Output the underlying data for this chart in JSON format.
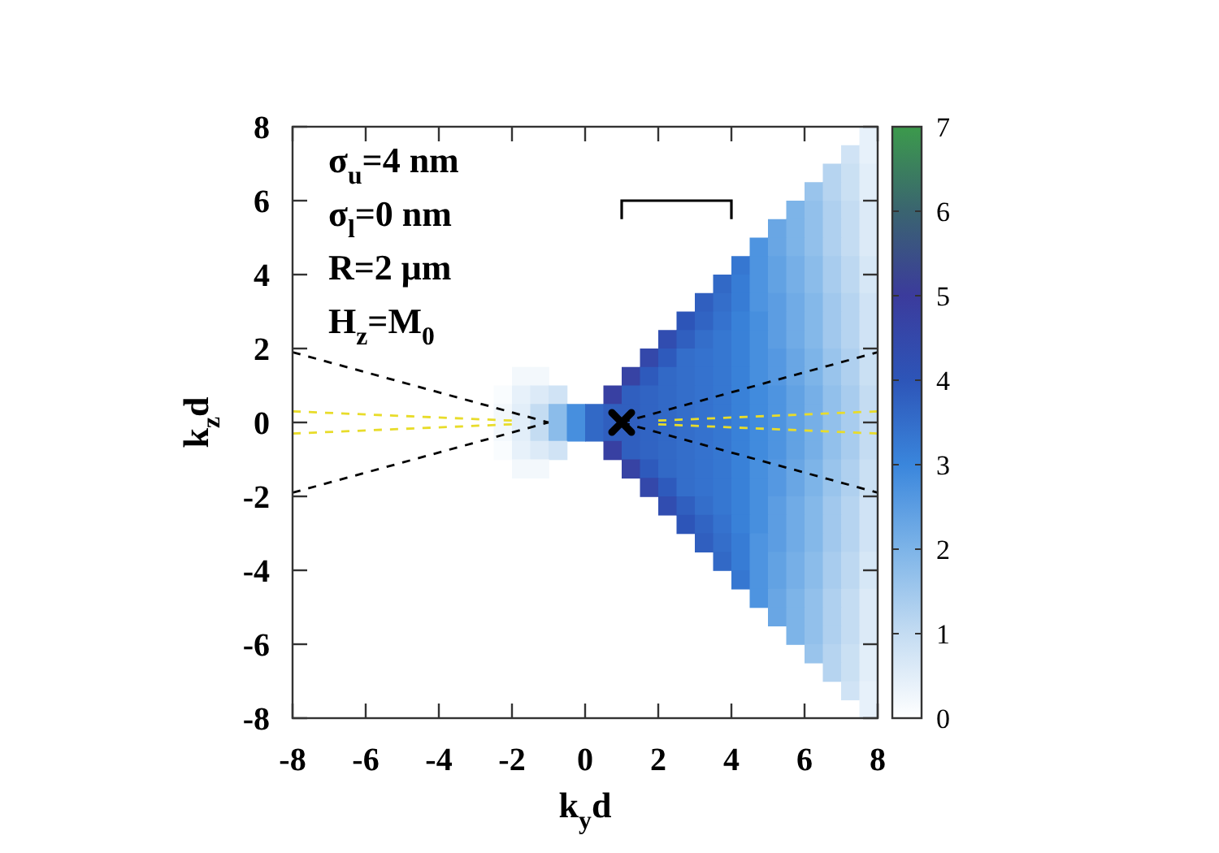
{
  "chart_data": {
    "type": "heatmap",
    "xlabel": "k$_{y}$d",
    "ylabel": "k$_{z}$d",
    "xlim": [
      -8,
      8
    ],
    "ylim": [
      -8,
      8
    ],
    "xticks": [
      -8,
      -6,
      -4,
      -2,
      0,
      2,
      4,
      6,
      8
    ],
    "yticks": [
      -8,
      -6,
      -4,
      -2,
      0,
      2,
      4,
      6,
      8
    ],
    "clim": [
      0,
      7
    ],
    "cticks": [
      0,
      1,
      2,
      3,
      4,
      5,
      6,
      7
    ],
    "annotations": [
      "σ$_{u}$=4 nm",
      "σ$_{l}$=0 nm",
      "R=2 μm",
      "H$_{z}$=M$_{0}$"
    ],
    "line_style": "dashed",
    "series": [
      {
        "type": "line",
        "color": "#000000",
        "x": [
          -8,
          -1
        ],
        "values": [
          1.9,
          0
        ]
      },
      {
        "type": "line",
        "color": "#000000",
        "x": [
          -8,
          -1
        ],
        "values": [
          -1.9,
          0
        ]
      },
      {
        "type": "line",
        "color": "#000000",
        "x": [
          1,
          8
        ],
        "values": [
          0,
          1.9
        ]
      },
      {
        "type": "line",
        "color": "#000000",
        "x": [
          1,
          8
        ],
        "values": [
          0,
          -1.9
        ]
      },
      {
        "type": "line",
        "color": "#e8dc2a",
        "x": [
          -8,
          -2
        ],
        "values": [
          0.3,
          0.05
        ]
      },
      {
        "type": "line",
        "color": "#e8dc2a",
        "x": [
          -8,
          -2
        ],
        "values": [
          -0.3,
          -0.05
        ]
      },
      {
        "type": "line",
        "color": "#e8dc2a",
        "x": [
          2,
          8
        ],
        "values": [
          0.05,
          0.3
        ]
      },
      {
        "type": "line",
        "color": "#e8dc2a",
        "x": [
          2,
          8
        ],
        "values": [
          -0.05,
          -0.3
        ]
      },
      {
        "type": "scatter",
        "color": "#000000",
        "marker": "cross",
        "x": [
          1
        ],
        "values": [
          0
        ]
      }
    ],
    "cells": [
      [
        null,
        null,
        null,
        null,
        null,
        null,
        null,
        null,
        null,
        null,
        null,
        null,
        null,
        null,
        null,
        null,
        null,
        null,
        null,
        null,
        null,
        null,
        null,
        null,
        null,
        null,
        null,
        null,
        null,
        null,
        null,
        0.4
      ],
      [
        null,
        null,
        null,
        null,
        null,
        null,
        null,
        null,
        null,
        null,
        null,
        null,
        null,
        null,
        null,
        null,
        null,
        null,
        null,
        null,
        null,
        null,
        null,
        null,
        null,
        null,
        null,
        null,
        null,
        null,
        0.8,
        0.4
      ],
      [
        null,
        null,
        null,
        null,
        null,
        null,
        null,
        null,
        null,
        null,
        null,
        null,
        null,
        null,
        null,
        null,
        null,
        null,
        null,
        null,
        null,
        null,
        null,
        null,
        null,
        null,
        null,
        null,
        null,
        1.2,
        0.9,
        0.5
      ],
      [
        null,
        null,
        null,
        null,
        null,
        null,
        null,
        null,
        null,
        null,
        null,
        null,
        null,
        null,
        null,
        null,
        null,
        null,
        null,
        null,
        null,
        null,
        null,
        null,
        null,
        null,
        null,
        null,
        1.6,
        1.2,
        0.9,
        0.5
      ],
      [
        null,
        null,
        null,
        null,
        null,
        null,
        null,
        null,
        null,
        null,
        null,
        null,
        null,
        null,
        null,
        null,
        null,
        null,
        null,
        null,
        null,
        null,
        null,
        null,
        null,
        null,
        null,
        2.0,
        1.7,
        1.3,
        1.0,
        0.6
      ],
      [
        null,
        null,
        null,
        null,
        null,
        null,
        null,
        null,
        null,
        null,
        null,
        null,
        null,
        null,
        null,
        null,
        null,
        null,
        null,
        null,
        null,
        null,
        null,
        null,
        null,
        null,
        2.3,
        2.0,
        1.7,
        1.3,
        1.0,
        0.6
      ],
      [
        null,
        null,
        null,
        null,
        null,
        null,
        null,
        null,
        null,
        null,
        null,
        null,
        null,
        null,
        null,
        null,
        null,
        null,
        null,
        null,
        null,
        null,
        null,
        null,
        null,
        2.7,
        2.3,
        2.0,
        1.7,
        1.3,
        1.0,
        0.6
      ],
      [
        null,
        null,
        null,
        null,
        null,
        null,
        null,
        null,
        null,
        null,
        null,
        null,
        null,
        null,
        null,
        null,
        null,
        null,
        null,
        null,
        null,
        null,
        null,
        null,
        3.3,
        2.7,
        2.4,
        2.1,
        1.8,
        1.4,
        1.1,
        0.7
      ],
      [
        null,
        null,
        null,
        null,
        null,
        null,
        null,
        null,
        null,
        null,
        null,
        null,
        null,
        null,
        null,
        null,
        null,
        null,
        null,
        null,
        null,
        null,
        null,
        3.6,
        3.2,
        2.7,
        2.4,
        2.1,
        1.8,
        1.4,
        1.1,
        0.7
      ],
      [
        null,
        null,
        null,
        null,
        null,
        null,
        null,
        null,
        null,
        null,
        null,
        null,
        null,
        null,
        null,
        null,
        null,
        null,
        null,
        null,
        null,
        null,
        3.8,
        3.5,
        3.2,
        2.7,
        2.5,
        2.2,
        1.9,
        1.5,
        1.2,
        0.8
      ],
      [
        null,
        null,
        null,
        null,
        null,
        null,
        null,
        null,
        null,
        null,
        null,
        null,
        null,
        null,
        null,
        null,
        null,
        null,
        null,
        null,
        null,
        4.0,
        3.7,
        3.4,
        3.1,
        2.8,
        2.5,
        2.2,
        1.9,
        1.5,
        1.2,
        0.8
      ],
      [
        null,
        null,
        null,
        null,
        null,
        null,
        null,
        null,
        null,
        null,
        null,
        null,
        null,
        null,
        null,
        null,
        null,
        null,
        null,
        null,
        4.3,
        3.8,
        3.5,
        3.3,
        3.1,
        2.8,
        2.5,
        2.2,
        1.9,
        1.5,
        1.2,
        0.8
      ],
      [
        null,
        null,
        null,
        null,
        null,
        null,
        null,
        null,
        null,
        null,
        null,
        null,
        null,
        null,
        null,
        null,
        null,
        null,
        null,
        4.5,
        3.9,
        3.5,
        3.4,
        3.3,
        3.1,
        2.8,
        2.6,
        2.3,
        2.0,
        1.6,
        1.3,
        0.9
      ],
      [
        null,
        null,
        null,
        null,
        null,
        null,
        null,
        null,
        null,
        null,
        null,
        null,
        0.2,
        0.2,
        null,
        null,
        null,
        null,
        4.7,
        3.9,
        3.6,
        3.5,
        3.4,
        3.3,
        3.1,
        2.8,
        2.6,
        2.3,
        2.0,
        1.6,
        1.3,
        0.9
      ],
      [
        null,
        null,
        null,
        null,
        null,
        null,
        null,
        null,
        null,
        null,
        null,
        0.1,
        0.4,
        0.6,
        0.8,
        null,
        null,
        4.8,
        3.8,
        3.7,
        3.6,
        3.5,
        3.4,
        3.3,
        3.1,
        2.9,
        2.7,
        2.4,
        2.1,
        1.7,
        1.4,
        1.0
      ],
      [
        null,
        null,
        null,
        null,
        null,
        null,
        null,
        null,
        null,
        null,
        null,
        0.2,
        0.5,
        1.0,
        1.8,
        2.8,
        3.6,
        3.8,
        3.8,
        3.7,
        3.6,
        3.5,
        3.4,
        3.3,
        3.1,
        2.9,
        2.7,
        2.4,
        2.1,
        1.7,
        1.4,
        1.0
      ],
      [
        null,
        null,
        null,
        null,
        null,
        null,
        null,
        null,
        null,
        null,
        null,
        0.2,
        0.5,
        1.0,
        1.8,
        2.8,
        3.6,
        3.8,
        3.8,
        3.7,
        3.6,
        3.5,
        3.4,
        3.3,
        3.1,
        2.9,
        2.7,
        2.4,
        2.1,
        1.7,
        1.4,
        1.0
      ],
      [
        null,
        null,
        null,
        null,
        null,
        null,
        null,
        null,
        null,
        null,
        null,
        0.1,
        0.4,
        0.6,
        0.8,
        null,
        null,
        4.8,
        3.8,
        3.7,
        3.6,
        3.5,
        3.4,
        3.3,
        3.1,
        2.9,
        2.7,
        2.4,
        2.1,
        1.7,
        1.4,
        1.0
      ],
      [
        null,
        null,
        null,
        null,
        null,
        null,
        null,
        null,
        null,
        null,
        null,
        null,
        0.2,
        0.2,
        null,
        null,
        null,
        null,
        4.7,
        3.9,
        3.6,
        3.5,
        3.4,
        3.3,
        3.1,
        2.8,
        2.6,
        2.3,
        2.0,
        1.6,
        1.3,
        0.9
      ],
      [
        null,
        null,
        null,
        null,
        null,
        null,
        null,
        null,
        null,
        null,
        null,
        null,
        null,
        null,
        null,
        null,
        null,
        null,
        null,
        4.5,
        3.9,
        3.5,
        3.4,
        3.3,
        3.1,
        2.8,
        2.6,
        2.3,
        2.0,
        1.6,
        1.3,
        0.9
      ],
      [
        null,
        null,
        null,
        null,
        null,
        null,
        null,
        null,
        null,
        null,
        null,
        null,
        null,
        null,
        null,
        null,
        null,
        null,
        null,
        null,
        4.3,
        3.8,
        3.5,
        3.3,
        3.1,
        2.8,
        2.5,
        2.2,
        1.9,
        1.5,
        1.2,
        0.8
      ],
      [
        null,
        null,
        null,
        null,
        null,
        null,
        null,
        null,
        null,
        null,
        null,
        null,
        null,
        null,
        null,
        null,
        null,
        null,
        null,
        null,
        null,
        4.0,
        3.7,
        3.4,
        3.1,
        2.8,
        2.5,
        2.2,
        1.9,
        1.5,
        1.2,
        0.8
      ],
      [
        null,
        null,
        null,
        null,
        null,
        null,
        null,
        null,
        null,
        null,
        null,
        null,
        null,
        null,
        null,
        null,
        null,
        null,
        null,
        null,
        null,
        null,
        3.8,
        3.5,
        3.2,
        2.7,
        2.5,
        2.2,
        1.9,
        1.5,
        1.2,
        0.8
      ],
      [
        null,
        null,
        null,
        null,
        null,
        null,
        null,
        null,
        null,
        null,
        null,
        null,
        null,
        null,
        null,
        null,
        null,
        null,
        null,
        null,
        null,
        null,
        null,
        3.6,
        3.2,
        2.7,
        2.4,
        2.1,
        1.8,
        1.4,
        1.1,
        0.7
      ],
      [
        null,
        null,
        null,
        null,
        null,
        null,
        null,
        null,
        null,
        null,
        null,
        null,
        null,
        null,
        null,
        null,
        null,
        null,
        null,
        null,
        null,
        null,
        null,
        null,
        3.3,
        2.7,
        2.4,
        2.1,
        1.8,
        1.4,
        1.1,
        0.7
      ],
      [
        null,
        null,
        null,
        null,
        null,
        null,
        null,
        null,
        null,
        null,
        null,
        null,
        null,
        null,
        null,
        null,
        null,
        null,
        null,
        null,
        null,
        null,
        null,
        null,
        null,
        2.7,
        2.3,
        2.0,
        1.7,
        1.3,
        1.0,
        0.6
      ],
      [
        null,
        null,
        null,
        null,
        null,
        null,
        null,
        null,
        null,
        null,
        null,
        null,
        null,
        null,
        null,
        null,
        null,
        null,
        null,
        null,
        null,
        null,
        null,
        null,
        null,
        null,
        2.3,
        2.0,
        1.7,
        1.3,
        1.0,
        0.6
      ],
      [
        null,
        null,
        null,
        null,
        null,
        null,
        null,
        null,
        null,
        null,
        null,
        null,
        null,
        null,
        null,
        null,
        null,
        null,
        null,
        null,
        null,
        null,
        null,
        null,
        null,
        null,
        null,
        2.0,
        1.7,
        1.3,
        1.0,
        0.6
      ],
      [
        null,
        null,
        null,
        null,
        null,
        null,
        null,
        null,
        null,
        null,
        null,
        null,
        null,
        null,
        null,
        null,
        null,
        null,
        null,
        null,
        null,
        null,
        null,
        null,
        null,
        null,
        null,
        null,
        1.6,
        1.2,
        0.9,
        0.5
      ],
      [
        null,
        null,
        null,
        null,
        null,
        null,
        null,
        null,
        null,
        null,
        null,
        null,
        null,
        null,
        null,
        null,
        null,
        null,
        null,
        null,
        null,
        null,
        null,
        null,
        null,
        null,
        null,
        null,
        null,
        1.2,
        0.9,
        0.5
      ],
      [
        null,
        null,
        null,
        null,
        null,
        null,
        null,
        null,
        null,
        null,
        null,
        null,
        null,
        null,
        null,
        null,
        null,
        null,
        null,
        null,
        null,
        null,
        null,
        null,
        null,
        null,
        null,
        null,
        null,
        null,
        0.8,
        0.4
      ],
      [
        null,
        null,
        null,
        null,
        null,
        null,
        null,
        null,
        null,
        null,
        null,
        null,
        null,
        null,
        null,
        null,
        null,
        null,
        null,
        null,
        null,
        null,
        null,
        null,
        null,
        null,
        null,
        null,
        null,
        null,
        null,
        0.4
      ]
    ]
  }
}
